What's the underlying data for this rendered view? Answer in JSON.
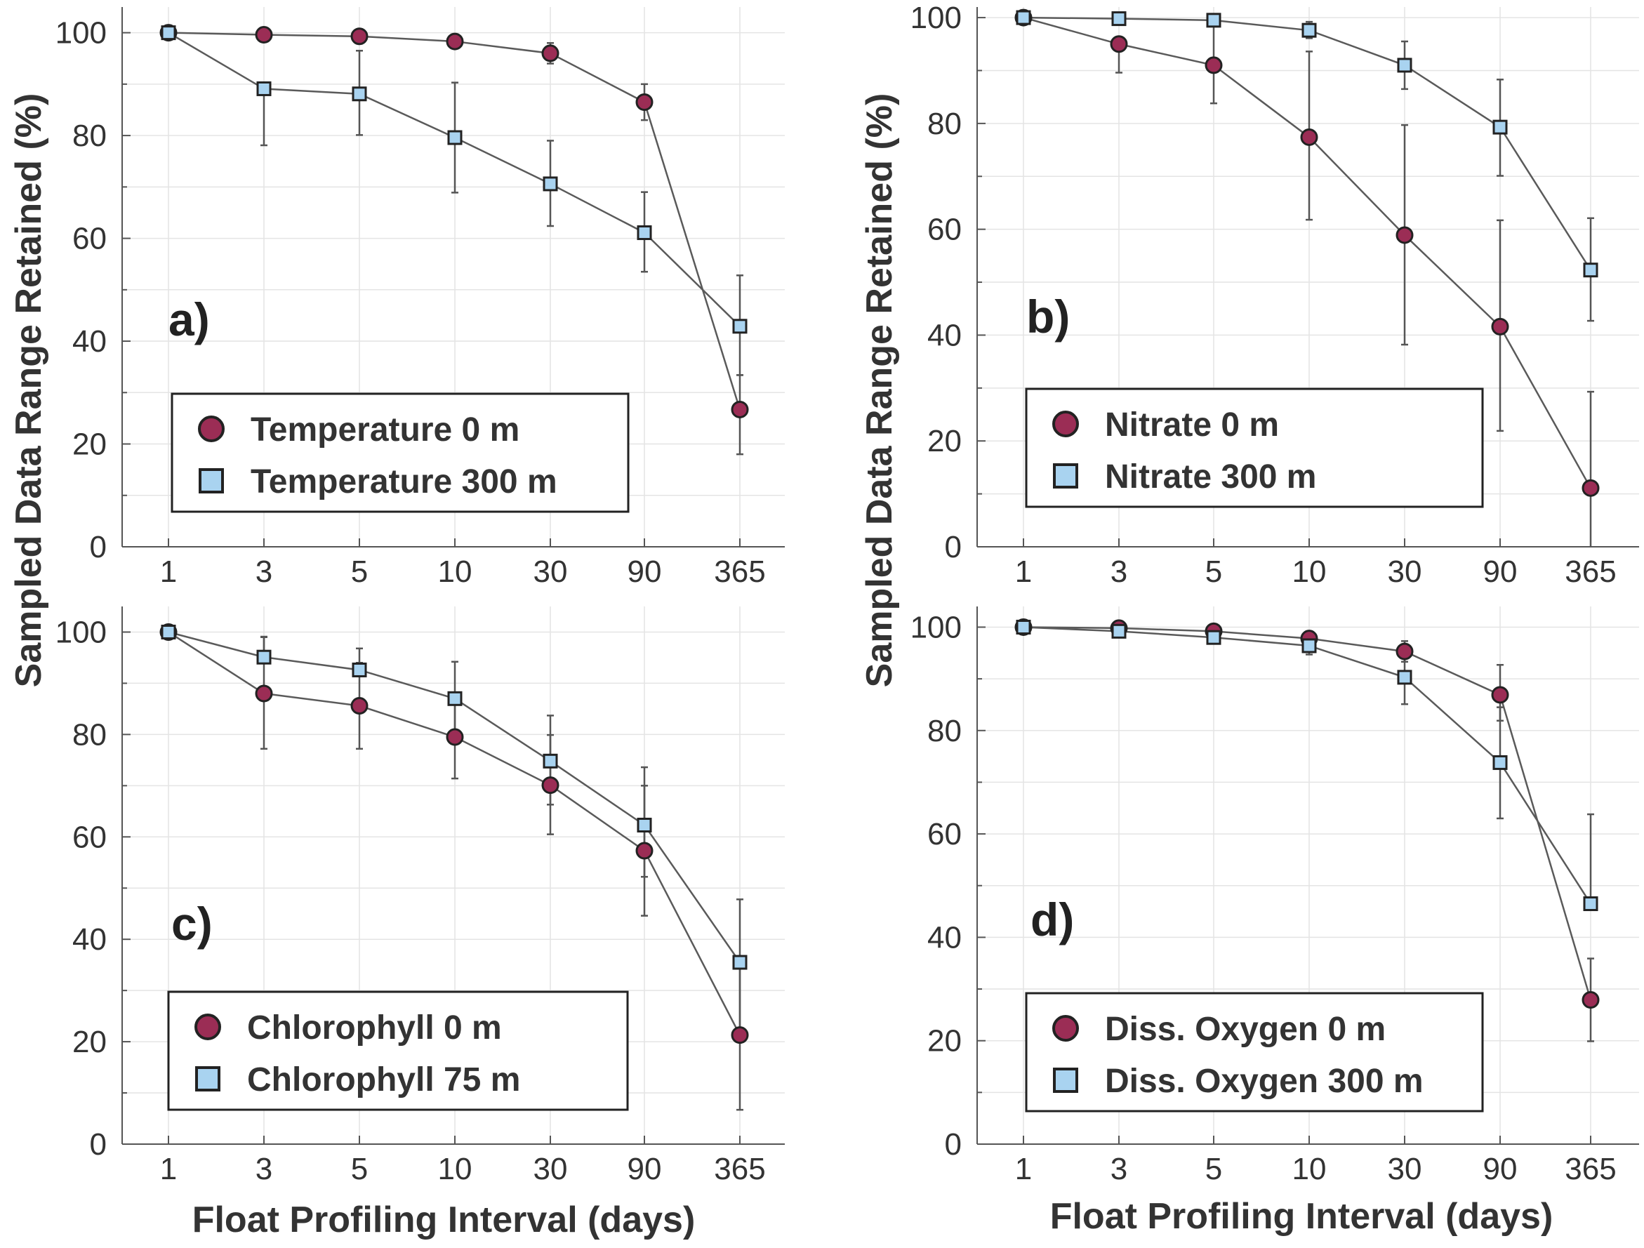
{
  "figure": {
    "ylabel": "Sampled Data Range Retained (%)",
    "xlabel": "Float Profiling Interval (days)"
  },
  "colors": {
    "circle": "#9b2d55",
    "square": "#a9d3f0",
    "line": "#5a5a5a",
    "axis": "#555555",
    "text": "#333333"
  },
  "chart_data": [
    {
      "type": "line",
      "panel": "a)",
      "x": [
        "1",
        "3",
        "5",
        "10",
        "30",
        "90",
        "365"
      ],
      "ylim": [
        0,
        105
      ],
      "yticks": [
        0,
        20,
        40,
        60,
        80,
        100
      ],
      "legend_position": "lower-left",
      "series": [
        {
          "name": "Temperature 0 m",
          "marker": "circle",
          "values": [
            100,
            99.6,
            99.3,
            98.3,
            96.0,
            86.5,
            26.7
          ],
          "err_low": [
            0,
            0,
            0,
            0,
            2.0,
            3.5,
            8.7
          ],
          "err_high": [
            0,
            0,
            0,
            0,
            2.0,
            3.5,
            6.7
          ]
        },
        {
          "name": "Temperature 300 m",
          "marker": "square",
          "values": [
            100,
            89.1,
            88.1,
            79.6,
            70.6,
            61.1,
            42.9
          ],
          "err_low": [
            0,
            11,
            8,
            10.7,
            8.2,
            7.6,
            9.5
          ],
          "err_high": [
            0,
            0,
            8.4,
            10.7,
            8.4,
            7.9,
            9.9
          ]
        }
      ]
    },
    {
      "type": "line",
      "panel": "b)",
      "x": [
        "1",
        "3",
        "5",
        "10",
        "30",
        "90",
        "365"
      ],
      "ylim": [
        0,
        102
      ],
      "yticks": [
        0,
        20,
        40,
        60,
        80,
        100
      ],
      "legend_position": "lower-left",
      "series": [
        {
          "name": "Nitrate 0 m",
          "marker": "circle",
          "values": [
            100,
            95.0,
            91.0,
            77.4,
            58.9,
            41.6,
            11.1
          ],
          "err_low": [
            0,
            5.4,
            7.2,
            15.6,
            20.7,
            19.7,
            11.1
          ],
          "err_high": [
            0,
            0,
            7.4,
            16.2,
            20.8,
            20.1,
            18.2
          ]
        },
        {
          "name": "Nitrate 300 m",
          "marker": "square",
          "values": [
            100,
            99.8,
            99.5,
            97.6,
            91.0,
            79.3,
            52.3
          ],
          "err_low": [
            0,
            0,
            0,
            1.5,
            4.5,
            9.2,
            9.6
          ],
          "err_high": [
            0,
            0,
            0,
            1.6,
            4.5,
            9.0,
            9.8
          ]
        }
      ]
    },
    {
      "type": "line",
      "panel": "c)",
      "x": [
        "1",
        "3",
        "5",
        "10",
        "30",
        "90",
        "365"
      ],
      "ylim": [
        0,
        105
      ],
      "yticks": [
        0,
        20,
        40,
        60,
        80,
        100
      ],
      "legend_position": "lower-left",
      "series": [
        {
          "name": "Chlorophyll 0 m",
          "marker": "circle",
          "values": [
            100,
            88.0,
            85.6,
            79.5,
            70.1,
            57.3,
            21.3
          ],
          "err_low": [
            0,
            10.8,
            8.4,
            8.1,
            9.6,
            12.7,
            14.6
          ],
          "err_high": [
            0,
            11.0,
            8.4,
            8.1,
            9.8,
            12.7,
            14.8
          ]
        },
        {
          "name": "Chlorophyll 75 m",
          "marker": "square",
          "values": [
            100,
            95.1,
            92.6,
            87.0,
            74.8,
            62.3,
            35.5
          ],
          "err_low": [
            0,
            0,
            0,
            7.2,
            8.5,
            10.1,
            12.8
          ],
          "err_high": [
            0,
            4.0,
            4.2,
            7.2,
            8.9,
            11.3,
            12.3
          ]
        }
      ]
    },
    {
      "type": "line",
      "panel": "d)",
      "x": [
        "1",
        "3",
        "5",
        "10",
        "30",
        "90",
        "365"
      ],
      "ylim": [
        0,
        104
      ],
      "yticks": [
        0,
        20,
        40,
        60,
        80,
        100
      ],
      "legend_position": "lower-left",
      "series": [
        {
          "name": "Diss. Oxygen 0 m",
          "marker": "circle",
          "values": [
            100,
            99.8,
            99.2,
            97.8,
            95.3,
            86.9,
            27.9
          ],
          "err_low": [
            0,
            0,
            0,
            0,
            2.0,
            5.0,
            8.0
          ],
          "err_high": [
            0,
            0,
            0,
            0,
            2.0,
            5.8,
            8.0
          ]
        },
        {
          "name": "Diss. Oxygen 300 m",
          "marker": "square",
          "values": [
            100,
            99.2,
            98.0,
            96.4,
            90.3,
            73.8,
            46.5
          ],
          "err_low": [
            0,
            0,
            0,
            1.7,
            5.2,
            10.8,
            0
          ],
          "err_high": [
            0,
            0,
            0,
            1.7,
            5.2,
            10.7,
            17.3
          ]
        }
      ]
    }
  ]
}
